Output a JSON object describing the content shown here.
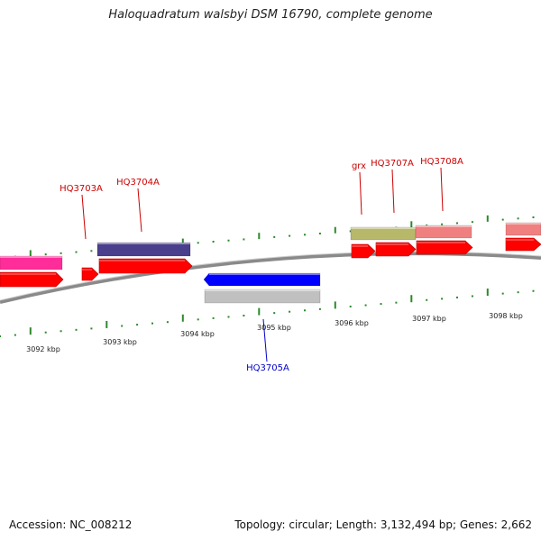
{
  "title": "Haloquadratum walsbyi DSM 16790, complete genome",
  "footer": {
    "accession": "Accession: NC_008212",
    "summary": "Topology: circular; Length: 3,132,494 bp; Genes: 2,662"
  },
  "colors": {
    "backbone": "#8a8a8a",
    "tick": "#2a8a2a",
    "cds": "#ff0000",
    "label_forward": "#cc0000",
    "label_reverse": "#0000cc"
  },
  "kbp_labels": [
    "3092 kbp",
    "3093 kbp",
    "3094 kbp",
    "3095 kbp",
    "3096 kbp",
    "3097 kbp",
    "3098 kbp"
  ],
  "gene_labels": [
    {
      "text": "HQ3703A",
      "strand": "forward"
    },
    {
      "text": "HQ3704A",
      "strand": "forward"
    },
    {
      "text": "grx",
      "strand": "forward"
    },
    {
      "text": "HQ3707A",
      "strand": "forward"
    },
    {
      "text": "HQ3708A",
      "strand": "forward"
    },
    {
      "text": "HQ3705A",
      "strand": "reverse"
    }
  ],
  "features": [
    {
      "name": "pink-feature",
      "color": "#ff2d9a",
      "strand": "forward"
    },
    {
      "name": "purple-feature",
      "color": "#4a3f8c",
      "strand": "forward"
    },
    {
      "name": "olive-feature",
      "color": "#b8b86a",
      "strand": "forward"
    },
    {
      "name": "salmon-feature",
      "color": "#f08080",
      "strand": "forward"
    },
    {
      "name": "salmon-feature-right",
      "color": "#f08080",
      "strand": "forward"
    },
    {
      "name": "blue-feature",
      "color": "#0000ff",
      "strand": "reverse"
    },
    {
      "name": "gray-feature",
      "color": "#c0c0c0",
      "strand": "reverse"
    }
  ]
}
